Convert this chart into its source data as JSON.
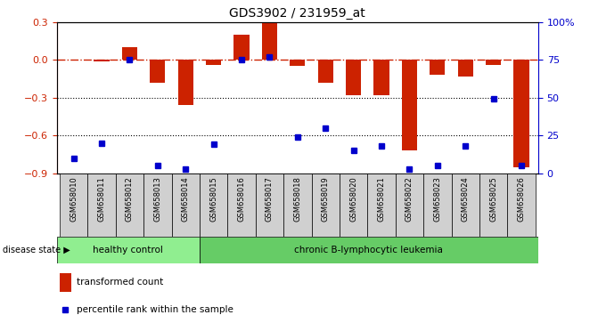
{
  "title": "GDS3902 / 231959_at",
  "samples": [
    "GSM658010",
    "GSM658011",
    "GSM658012",
    "GSM658013",
    "GSM658014",
    "GSM658015",
    "GSM658016",
    "GSM658017",
    "GSM658018",
    "GSM658019",
    "GSM658020",
    "GSM658021",
    "GSM658022",
    "GSM658023",
    "GSM658024",
    "GSM658025",
    "GSM658026"
  ],
  "bar_values": [
    0.0,
    -0.01,
    0.1,
    -0.18,
    -0.36,
    -0.04,
    0.2,
    0.29,
    -0.05,
    -0.18,
    -0.28,
    -0.28,
    -0.72,
    -0.12,
    -0.13,
    -0.04,
    -0.85
  ],
  "blue_values": [
    10,
    20,
    75,
    5,
    3,
    19,
    75,
    77,
    24,
    30,
    15,
    18,
    3,
    5,
    18,
    49,
    5
  ],
  "n_healthy": 5,
  "ylim_left": [
    -0.9,
    0.3
  ],
  "ylim_right": [
    0,
    100
  ],
  "bar_color": "#cc2200",
  "blue_color": "#0000cc",
  "dashed_line_color": "#cc2200",
  "healthy_color": "#90ee90",
  "leukemia_color": "#66cc66",
  "sample_box_color": "#d0d0d0",
  "tick_color_left": "#cc2200",
  "tick_color_right": "#0000cc",
  "legend_bar_label": "transformed count",
  "legend_blue_label": "percentile rank within the sample",
  "disease_state_label": "disease state",
  "healthy_label": "healthy control",
  "leukemia_label": "chronic B-lymphocytic leukemia",
  "yticks_left": [
    -0.9,
    -0.6,
    -0.3,
    0.0,
    0.3
  ],
  "yticks_right": [
    0,
    25,
    50,
    75,
    100
  ],
  "ytick_right_labels": [
    "0",
    "25",
    "50",
    "75",
    "100%"
  ]
}
